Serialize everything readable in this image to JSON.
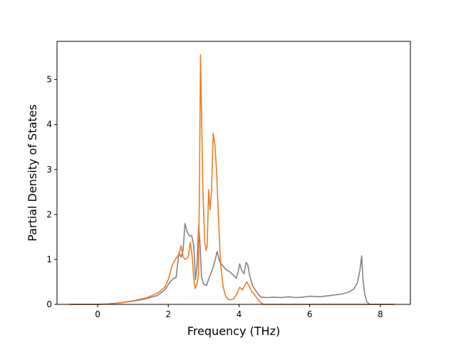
{
  "chart_data": {
    "type": "line",
    "title": "",
    "xlabel": "Frequency (THz)",
    "ylabel": "Partial Density of States",
    "xlim": [
      -1.15,
      8.85
    ],
    "ylim": [
      0,
      5.85
    ],
    "xticks": [
      0,
      2,
      4,
      6,
      8
    ],
    "yticks": [
      0,
      1,
      2,
      3,
      4,
      5
    ],
    "grid": false,
    "legend": "none",
    "series": [
      {
        "color": "#8c7f84",
        "points": [
          [
            -0.8,
            0
          ],
          [
            0,
            0
          ],
          [
            0.3,
            0.01
          ],
          [
            0.6,
            0.03
          ],
          [
            1.0,
            0.07
          ],
          [
            1.4,
            0.13
          ],
          [
            1.7,
            0.2
          ],
          [
            1.9,
            0.32
          ],
          [
            2.05,
            0.5
          ],
          [
            2.15,
            0.58
          ],
          [
            2.22,
            0.6
          ],
          [
            2.3,
            1.15
          ],
          [
            2.36,
            1.05
          ],
          [
            2.42,
            1.22
          ],
          [
            2.47,
            1.8
          ],
          [
            2.53,
            1.62
          ],
          [
            2.6,
            1.52
          ],
          [
            2.66,
            1.53
          ],
          [
            2.72,
            1.3
          ],
          [
            2.77,
            0.55
          ],
          [
            2.81,
            0.85
          ],
          [
            2.86,
            1.76
          ],
          [
            2.9,
            1.3
          ],
          [
            2.94,
            0.6
          ],
          [
            3.0,
            0.45
          ],
          [
            3.08,
            0.42
          ],
          [
            3.15,
            0.58
          ],
          [
            3.25,
            0.78
          ],
          [
            3.33,
            1.0
          ],
          [
            3.38,
            1.18
          ],
          [
            3.45,
            0.95
          ],
          [
            3.55,
            0.85
          ],
          [
            3.62,
            0.78
          ],
          [
            3.75,
            0.72
          ],
          [
            3.85,
            0.64
          ],
          [
            3.92,
            0.58
          ],
          [
            3.97,
            0.7
          ],
          [
            4.02,
            0.9
          ],
          [
            4.08,
            0.75
          ],
          [
            4.14,
            0.68
          ],
          [
            4.2,
            0.93
          ],
          [
            4.25,
            0.88
          ],
          [
            4.3,
            0.65
          ],
          [
            4.38,
            0.42
          ],
          [
            4.48,
            0.3
          ],
          [
            4.55,
            0.22
          ],
          [
            4.62,
            0.16
          ],
          [
            4.8,
            0.15
          ],
          [
            5.0,
            0.16
          ],
          [
            5.2,
            0.15
          ],
          [
            5.4,
            0.17
          ],
          [
            5.6,
            0.15
          ],
          [
            5.8,
            0.16
          ],
          [
            6.0,
            0.18
          ],
          [
            6.3,
            0.17
          ],
          [
            6.6,
            0.2
          ],
          [
            6.9,
            0.23
          ],
          [
            7.1,
            0.27
          ],
          [
            7.25,
            0.34
          ],
          [
            7.35,
            0.48
          ],
          [
            7.42,
            0.75
          ],
          [
            7.47,
            1.08
          ],
          [
            7.51,
            0.55
          ],
          [
            7.56,
            0.22
          ],
          [
            7.62,
            0.05
          ],
          [
            7.7,
            0
          ],
          [
            8.4,
            0
          ]
        ]
      },
      {
        "color": "#ee7d22",
        "points": [
          [
            -0.8,
            0
          ],
          [
            0,
            0
          ],
          [
            0.3,
            0.01
          ],
          [
            0.6,
            0.03
          ],
          [
            1.0,
            0.08
          ],
          [
            1.4,
            0.15
          ],
          [
            1.7,
            0.25
          ],
          [
            1.9,
            0.38
          ],
          [
            2.0,
            0.55
          ],
          [
            2.1,
            0.85
          ],
          [
            2.2,
            1.0
          ],
          [
            2.3,
            1.12
          ],
          [
            2.36,
            1.3
          ],
          [
            2.42,
            1.05
          ],
          [
            2.48,
            1.0
          ],
          [
            2.56,
            1.05
          ],
          [
            2.62,
            1.38
          ],
          [
            2.67,
            1.1
          ],
          [
            2.72,
            0.55
          ],
          [
            2.76,
            0.35
          ],
          [
            2.81,
            0.45
          ],
          [
            2.85,
            0.65
          ],
          [
            2.88,
            2.5
          ],
          [
            2.91,
            5.55
          ],
          [
            2.94,
            4.2
          ],
          [
            2.98,
            2.5
          ],
          [
            3.03,
            1.4
          ],
          [
            3.07,
            1.2
          ],
          [
            3.1,
            1.3
          ],
          [
            3.14,
            2.55
          ],
          [
            3.18,
            2.1
          ],
          [
            3.22,
            2.5
          ],
          [
            3.27,
            3.8
          ],
          [
            3.32,
            3.55
          ],
          [
            3.37,
            2.9
          ],
          [
            3.42,
            1.9
          ],
          [
            3.48,
            0.9
          ],
          [
            3.55,
            0.4
          ],
          [
            3.62,
            0.18
          ],
          [
            3.72,
            0.1
          ],
          [
            3.85,
            0.12
          ],
          [
            3.95,
            0.25
          ],
          [
            4.02,
            0.38
          ],
          [
            4.1,
            0.32
          ],
          [
            4.16,
            0.42
          ],
          [
            4.22,
            0.5
          ],
          [
            4.28,
            0.42
          ],
          [
            4.35,
            0.3
          ],
          [
            4.45,
            0.2
          ],
          [
            4.55,
            0.1
          ],
          [
            4.62,
            0.03
          ],
          [
            4.7,
            0
          ],
          [
            8.4,
            0
          ]
        ]
      }
    ]
  }
}
